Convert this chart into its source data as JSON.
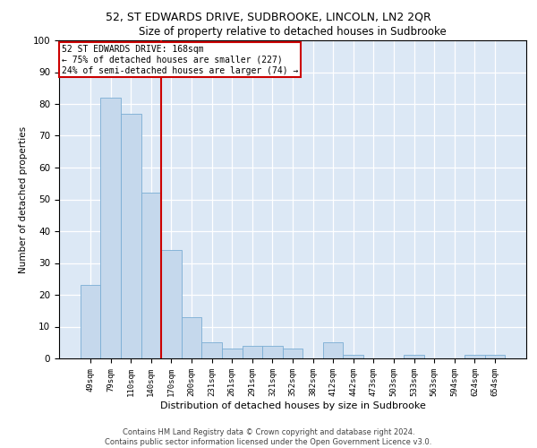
{
  "title1": "52, ST EDWARDS DRIVE, SUDBROOKE, LINCOLN, LN2 2QR",
  "title2": "Size of property relative to detached houses in Sudbrooke",
  "xlabel": "Distribution of detached houses by size in Sudbrooke",
  "ylabel": "Number of detached properties",
  "categories": [
    "49sqm",
    "79sqm",
    "110sqm",
    "140sqm",
    "170sqm",
    "200sqm",
    "231sqm",
    "261sqm",
    "291sqm",
    "321sqm",
    "352sqm",
    "382sqm",
    "412sqm",
    "442sqm",
    "473sqm",
    "503sqm",
    "533sqm",
    "563sqm",
    "594sqm",
    "624sqm",
    "654sqm"
  ],
  "values": [
    23,
    82,
    77,
    52,
    34,
    13,
    5,
    3,
    4,
    4,
    3,
    0,
    5,
    1,
    0,
    0,
    1,
    0,
    0,
    1,
    1
  ],
  "bar_color": "#c5d8ec",
  "bar_edge_color": "#7aadd4",
  "vline_color": "#cc0000",
  "annotation_line1": "52 ST EDWARDS DRIVE: 168sqm",
  "annotation_line2": "← 75% of detached houses are smaller (227)",
  "annotation_line3": "24% of semi-detached houses are larger (74) →",
  "annotation_box_color": "#ffffff",
  "annotation_box_edge": "#cc0000",
  "ylim": [
    0,
    100
  ],
  "yticks": [
    0,
    10,
    20,
    30,
    40,
    50,
    60,
    70,
    80,
    90,
    100
  ],
  "background_color": "#dce8f5",
  "footer1": "Contains HM Land Registry data © Crown copyright and database right 2024.",
  "footer2": "Contains public sector information licensed under the Open Government Licence v3.0."
}
